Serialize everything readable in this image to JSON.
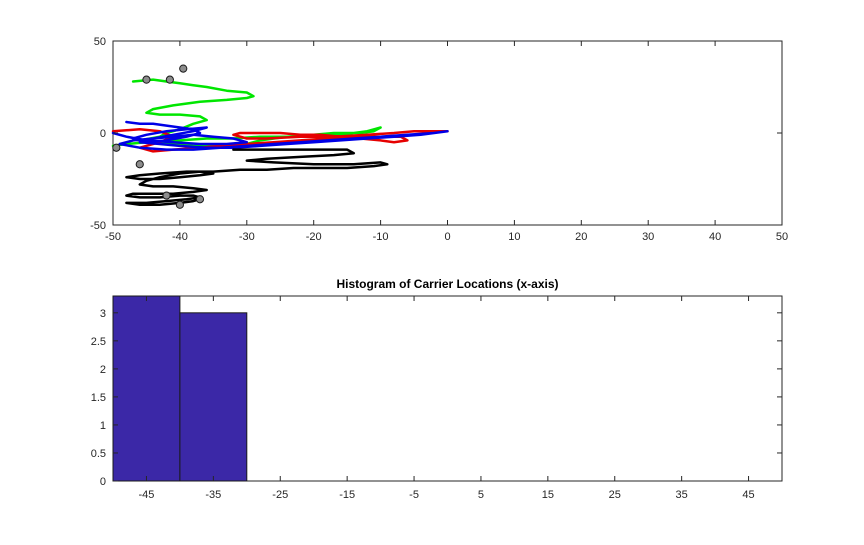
{
  "colors": {
    "background": "#ffffff",
    "axis": "#262626",
    "bar_fill": "#3b28a7",
    "bar_edge": "#1a1a1a",
    "marker_fill": "#8c8c8c",
    "trace_green": "#00e600",
    "trace_red": "#e60000",
    "trace_blue": "#0000e6",
    "trace_black": "#000000"
  },
  "chart_data": [
    {
      "type": "line",
      "title": "",
      "xlabel": "",
      "ylabel": "",
      "xlim": [
        -50,
        50
      ],
      "ylim": [
        -50,
        50
      ],
      "xticks": [
        -50,
        -40,
        -30,
        -20,
        -10,
        0,
        10,
        20,
        30,
        40,
        50
      ],
      "yticks": [
        -50,
        0,
        50
      ],
      "xtick_labels": [
        "-50",
        "-40",
        "-30",
        "-20",
        "-10",
        "0",
        "10",
        "20",
        "30",
        "40",
        "50"
      ],
      "ytick_labels": [
        "-50",
        "0",
        "50"
      ],
      "grid": false,
      "series": [
        {
          "name": "green",
          "color": "#00e600",
          "points": [
            [
              -47,
              28
            ],
            [
              -44,
              29
            ],
            [
              -42,
              28
            ],
            [
              -40,
              27
            ],
            [
              -38,
              26
            ],
            [
              -36,
              25
            ],
            [
              -33,
              23
            ],
            [
              -30,
              22
            ],
            [
              -29,
              20
            ],
            [
              -30,
              19
            ],
            [
              -33,
              18
            ],
            [
              -37,
              17
            ],
            [
              -41,
              15
            ],
            [
              -44,
              13
            ],
            [
              -45,
              11
            ],
            [
              -43,
              10
            ],
            [
              -40,
              10
            ],
            [
              -37,
              9
            ],
            [
              -36,
              7
            ],
            [
              -38,
              5
            ],
            [
              -40,
              2
            ],
            [
              -42,
              0
            ],
            [
              -43,
              -2
            ],
            [
              -46,
              -4
            ],
            [
              -43,
              -5
            ],
            [
              -40,
              -4
            ],
            [
              -36,
              -3
            ],
            [
              -32,
              -3
            ],
            [
              -28,
              -2
            ],
            [
              -25,
              -2
            ],
            [
              -22,
              -2
            ],
            [
              -19,
              -2
            ],
            [
              -16,
              -1
            ],
            [
              -14,
              0
            ],
            [
              -12,
              1
            ],
            [
              -10,
              3
            ],
            [
              -11,
              1
            ],
            [
              -13,
              0
            ],
            [
              -17,
              0
            ],
            [
              -20,
              -1
            ],
            [
              -24,
              -2
            ],
            [
              -28,
              -4
            ],
            [
              -30,
              -6
            ],
            [
              -34,
              -7
            ],
            [
              -38,
              -7
            ],
            [
              -41,
              -6
            ],
            [
              -45,
              -5
            ],
            [
              -48,
              -6
            ],
            [
              -50,
              -7
            ]
          ]
        },
        {
          "name": "red",
          "color": "#e60000",
          "points": [
            [
              -50,
              1
            ],
            [
              -46,
              2
            ],
            [
              -43,
              1
            ],
            [
              -41,
              -2
            ],
            [
              -43,
              -5
            ],
            [
              -46,
              -8
            ],
            [
              -44,
              -10
            ],
            [
              -41,
              -9
            ],
            [
              -37,
              -8
            ],
            [
              -34,
              -7
            ],
            [
              -30,
              -6
            ],
            [
              -26,
              -5
            ],
            [
              -22,
              -4
            ],
            [
              -18,
              -3
            ],
            [
              -14,
              -2
            ],
            [
              -10,
              -2
            ],
            [
              -7,
              -2
            ],
            [
              -6,
              -4
            ],
            [
              -8,
              -5
            ],
            [
              -10,
              -4
            ],
            [
              -13,
              -3
            ],
            [
              -16,
              -2
            ],
            [
              -19,
              -1
            ],
            [
              -22,
              -1
            ],
            [
              -25,
              0
            ],
            [
              -28,
              0
            ],
            [
              -31,
              0
            ],
            [
              -32,
              -1
            ],
            [
              -30,
              -3
            ],
            [
              -27,
              -3
            ],
            [
              -22,
              -2
            ],
            [
              -17,
              -2
            ],
            [
              -12,
              -1
            ],
            [
              -8,
              0
            ],
            [
              -5,
              1
            ],
            [
              -3,
              1
            ],
            [
              0,
              1
            ]
          ]
        },
        {
          "name": "blue",
          "color": "#0000e6",
          "points": [
            [
              -48,
              6
            ],
            [
              -46,
              5
            ],
            [
              -44,
              5
            ],
            [
              -42,
              4
            ],
            [
              -40,
              3
            ],
            [
              -38,
              2
            ],
            [
              -37,
              0
            ],
            [
              -39,
              -2
            ],
            [
              -42,
              -4
            ],
            [
              -45,
              -5
            ],
            [
              -47,
              -3
            ],
            [
              -45,
              -1
            ],
            [
              -42,
              1
            ],
            [
              -39,
              2
            ],
            [
              -36,
              3
            ],
            [
              -38,
              1
            ],
            [
              -41,
              -1
            ],
            [
              -44,
              -3
            ],
            [
              -46,
              -5
            ],
            [
              -43,
              -6
            ],
            [
              -40,
              -7
            ],
            [
              -36,
              -8
            ],
            [
              -32,
              -8
            ],
            [
              -28,
              -7
            ],
            [
              -24,
              -6
            ],
            [
              -20,
              -5
            ],
            [
              -16,
              -4
            ],
            [
              -12,
              -3
            ],
            [
              -8,
              -2
            ],
            [
              -4,
              -1
            ],
            [
              -2,
              0
            ],
            [
              0,
              1
            ],
            [
              -2,
              0
            ],
            [
              -6,
              -1
            ],
            [
              -10,
              -2
            ],
            [
              -14,
              -3
            ],
            [
              -18,
              -4
            ],
            [
              -22,
              -5
            ],
            [
              -26,
              -6
            ],
            [
              -30,
              -7
            ],
            [
              -34,
              -8
            ],
            [
              -38,
              -9
            ],
            [
              -42,
              -9
            ],
            [
              -46,
              -8
            ],
            [
              -49,
              -6
            ],
            [
              -47,
              -4
            ],
            [
              -44,
              -3
            ],
            [
              -41,
              -2
            ],
            [
              -38,
              -1
            ],
            [
              -35,
              -2
            ],
            [
              -32,
              -3
            ],
            [
              -30,
              -5
            ],
            [
              -33,
              -6
            ],
            [
              -37,
              -6
            ],
            [
              -41,
              -5
            ],
            [
              -45,
              -4
            ],
            [
              -48,
              -2
            ],
            [
              -50,
              0
            ]
          ]
        },
        {
          "name": "black",
          "color": "#000000",
          "points": [
            [
              -32,
              -9
            ],
            [
              -27,
              -9
            ],
            [
              -22,
              -9
            ],
            [
              -18,
              -9
            ],
            [
              -15,
              -9
            ],
            [
              -14,
              -11
            ],
            [
              -17,
              -12
            ],
            [
              -22,
              -13
            ],
            [
              -27,
              -14
            ],
            [
              -30,
              -15
            ],
            [
              -26,
              -16
            ],
            [
              -20,
              -17
            ],
            [
              -14,
              -17
            ],
            [
              -10,
              -16
            ],
            [
              -9,
              -17
            ],
            [
              -11,
              -18
            ],
            [
              -15,
              -19
            ],
            [
              -19,
              -19
            ],
            [
              -23,
              -19
            ],
            [
              -27,
              -20
            ],
            [
              -31,
              -20
            ],
            [
              -35,
              -21
            ],
            [
              -39,
              -21
            ],
            [
              -43,
              -22
            ],
            [
              -46,
              -23
            ],
            [
              -48,
              -24
            ],
            [
              -46,
              -25
            ],
            [
              -43,
              -25
            ],
            [
              -40,
              -24
            ],
            [
              -37,
              -23
            ],
            [
              -35,
              -22
            ],
            [
              -37,
              -21
            ],
            [
              -40,
              -22
            ],
            [
              -43,
              -24
            ],
            [
              -45,
              -26
            ],
            [
              -46,
              -28
            ],
            [
              -44,
              -29
            ],
            [
              -41,
              -29
            ],
            [
              -38,
              -30
            ],
            [
              -36,
              -31
            ],
            [
              -38,
              -32
            ],
            [
              -41,
              -33
            ],
            [
              -44,
              -33
            ],
            [
              -47,
              -33
            ],
            [
              -48,
              -34
            ],
            [
              -46,
              -35
            ],
            [
              -43,
              -35
            ],
            [
              -40,
              -34
            ],
            [
              -38,
              -34
            ],
            [
              -37,
              -35
            ],
            [
              -39,
              -36
            ],
            [
              -42,
              -37
            ],
            [
              -45,
              -38
            ],
            [
              -48,
              -38
            ],
            [
              -46,
              -39
            ],
            [
              -43,
              -39
            ],
            [
              -40,
              -38
            ],
            [
              -38,
              -37
            ],
            [
              -37,
              -36
            ]
          ]
        }
      ],
      "markers": [
        [
          -39.5,
          35
        ],
        [
          -45,
          29
        ],
        [
          -41.5,
          29
        ],
        [
          -49.5,
          -8
        ],
        [
          -46,
          -17
        ],
        [
          -42,
          -34
        ],
        [
          -37,
          -36
        ],
        [
          -40,
          -39
        ]
      ]
    },
    {
      "type": "bar",
      "title": "Histogram of Carrier Locations (x-axis)",
      "xlabel": "",
      "ylabel": "",
      "xlim": [
        -50,
        50
      ],
      "ylim": [
        0,
        3.3
      ],
      "bin_edges": [
        -50,
        -40,
        -30
      ],
      "counts": [
        3.3,
        3
      ],
      "xticks": [
        -45,
        -35,
        -25,
        -15,
        -5,
        5,
        15,
        25,
        35,
        45
      ],
      "yticks": [
        0,
        0.5,
        1,
        1.5,
        2,
        2.5,
        3
      ],
      "xtick_labels": [
        "-45",
        "-35",
        "-25",
        "-15",
        "-5",
        "5",
        "15",
        "25",
        "35",
        "45"
      ],
      "ytick_labels": [
        "0",
        "0.5",
        "1",
        "1.5",
        "2",
        "2.5",
        "3"
      ],
      "grid": false
    }
  ]
}
